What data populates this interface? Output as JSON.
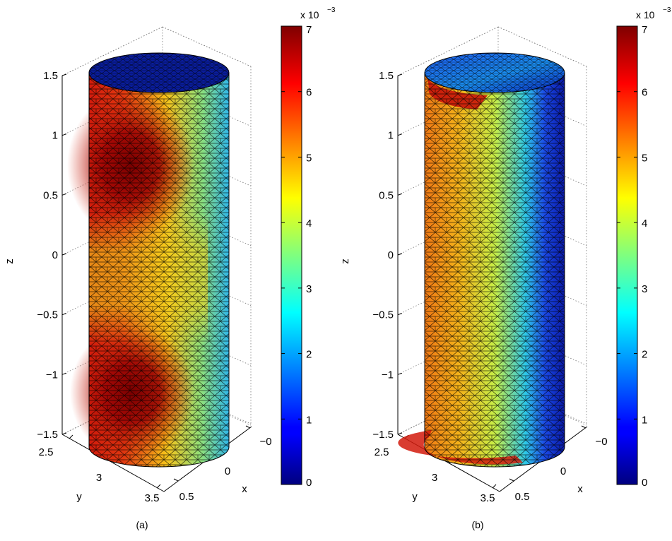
{
  "chart_data": [
    {
      "type": "surface",
      "caption": "(a)",
      "xlabel": "x",
      "ylabel": "y",
      "zlabel": "z",
      "x_ticks": [
        "0.5",
        "0",
        "−0"
      ],
      "y_ticks": [
        "2.5",
        "3",
        "3.5"
      ],
      "z_ticks": [
        "1.5",
        "1",
        "0.5",
        "0",
        "−0.5",
        "−1",
        "−1.5"
      ],
      "z_values": [
        1.5,
        1,
        0.5,
        0,
        -0.5,
        -1,
        -1.5
      ],
      "zlim": [
        -1.5,
        1.5
      ],
      "colorbar": {
        "exponent_label": "x 10",
        "exponent": "−3",
        "ticks": [
          "0",
          "1",
          "2",
          "3",
          "4",
          "5",
          "6",
          "7"
        ],
        "range": [
          0,
          7
        ],
        "colormap": "jet"
      },
      "pattern": "two hot spots on the front face (near z≈0.7 and z≈−1.2), top cap near zero"
    },
    {
      "type": "surface",
      "caption": "(b)",
      "xlabel": "x",
      "ylabel": "y",
      "zlabel": "z",
      "x_ticks": [
        "0.5",
        "0",
        "−0"
      ],
      "y_ticks": [
        "2.5",
        "3",
        "3.5"
      ],
      "z_ticks": [
        "1.5",
        "1",
        "0.5",
        "0",
        "−0.5",
        "−1",
        "−1.5"
      ],
      "z_values": [
        1.5,
        1,
        0.5,
        0,
        -0.5,
        -1,
        -1.5
      ],
      "zlim": [
        -1.5,
        1.5
      ],
      "colorbar": {
        "exponent_label": "x 10",
        "exponent": "−3",
        "ticks": [
          "0",
          "1",
          "2",
          "3",
          "4",
          "5",
          "6",
          "7"
        ],
        "range": [
          0,
          7
        ],
        "colormap": "jet"
      },
      "pattern": "values decrease from left (orange) to right (blue); red bands at top and bottom rim edges"
    }
  ]
}
